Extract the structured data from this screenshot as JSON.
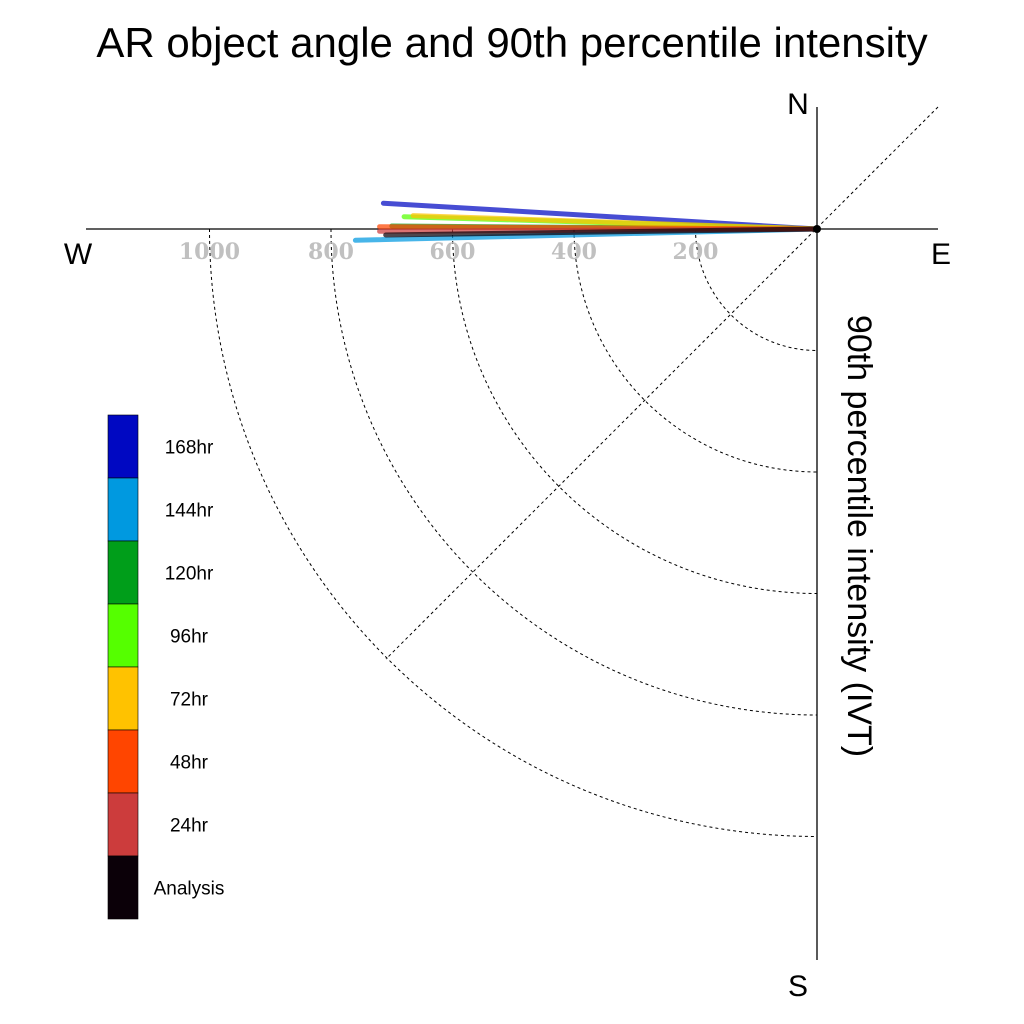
{
  "chart_data": {
    "type": "polar-vector",
    "title": "AR object angle and 90th percentile intensity",
    "radial_label": "90th percentile intensity (IVT)",
    "compass": {
      "north": "N",
      "south": "S",
      "west": "W",
      "east": "E"
    },
    "radial_ticks": [
      {
        "value": 200,
        "label": "200"
      },
      {
        "value": 400,
        "label": "400"
      },
      {
        "value": 600,
        "label": "600"
      },
      {
        "value": 800,
        "label": "800"
      },
      {
        "value": 1000,
        "label": "1000"
      }
    ],
    "radial_range": [
      0,
      1000
    ],
    "series": [
      {
        "name": "Analysis",
        "color": "#0b0008",
        "angle_deg": 180.8,
        "intensity": 710
      },
      {
        "name": "24hr",
        "color": "#cc3c3c",
        "angle_deg": 180.3,
        "intensity": 720
      },
      {
        "name": "48hr",
        "color": "#ff4500",
        "angle_deg": 179.7,
        "intensity": 720
      },
      {
        "name": "72hr",
        "color": "#ffc200",
        "angle_deg": 178.1,
        "intensity": 665
      },
      {
        "name": "96hr",
        "color": "#55ff00",
        "angle_deg": 178.3,
        "intensity": 680
      },
      {
        "name": "120hr",
        "color": "#009e1a",
        "angle_deg": 179.6,
        "intensity": 700
      },
      {
        "name": "144hr",
        "color": "#0099e0",
        "angle_deg": 181.4,
        "intensity": 760
      },
      {
        "name": "168hr",
        "color": "#0008c2",
        "angle_deg": 176.6,
        "intensity": 715
      }
    ],
    "legend": {
      "placement": "left",
      "entries": [
        {
          "label": "168hr",
          "color": "#0008c2"
        },
        {
          "label": "144hr",
          "color": "#0099e0"
        },
        {
          "label": "120hr",
          "color": "#009e1a"
        },
        {
          "label": "96hr",
          "color": "#55ff00"
        },
        {
          "label": "72hr",
          "color": "#ffc200"
        },
        {
          "label": "48hr",
          "color": "#ff4500"
        },
        {
          "label": "24hr",
          "color": "#cc3c3c"
        },
        {
          "label": "Analysis",
          "color": "#0b0008"
        }
      ]
    }
  }
}
